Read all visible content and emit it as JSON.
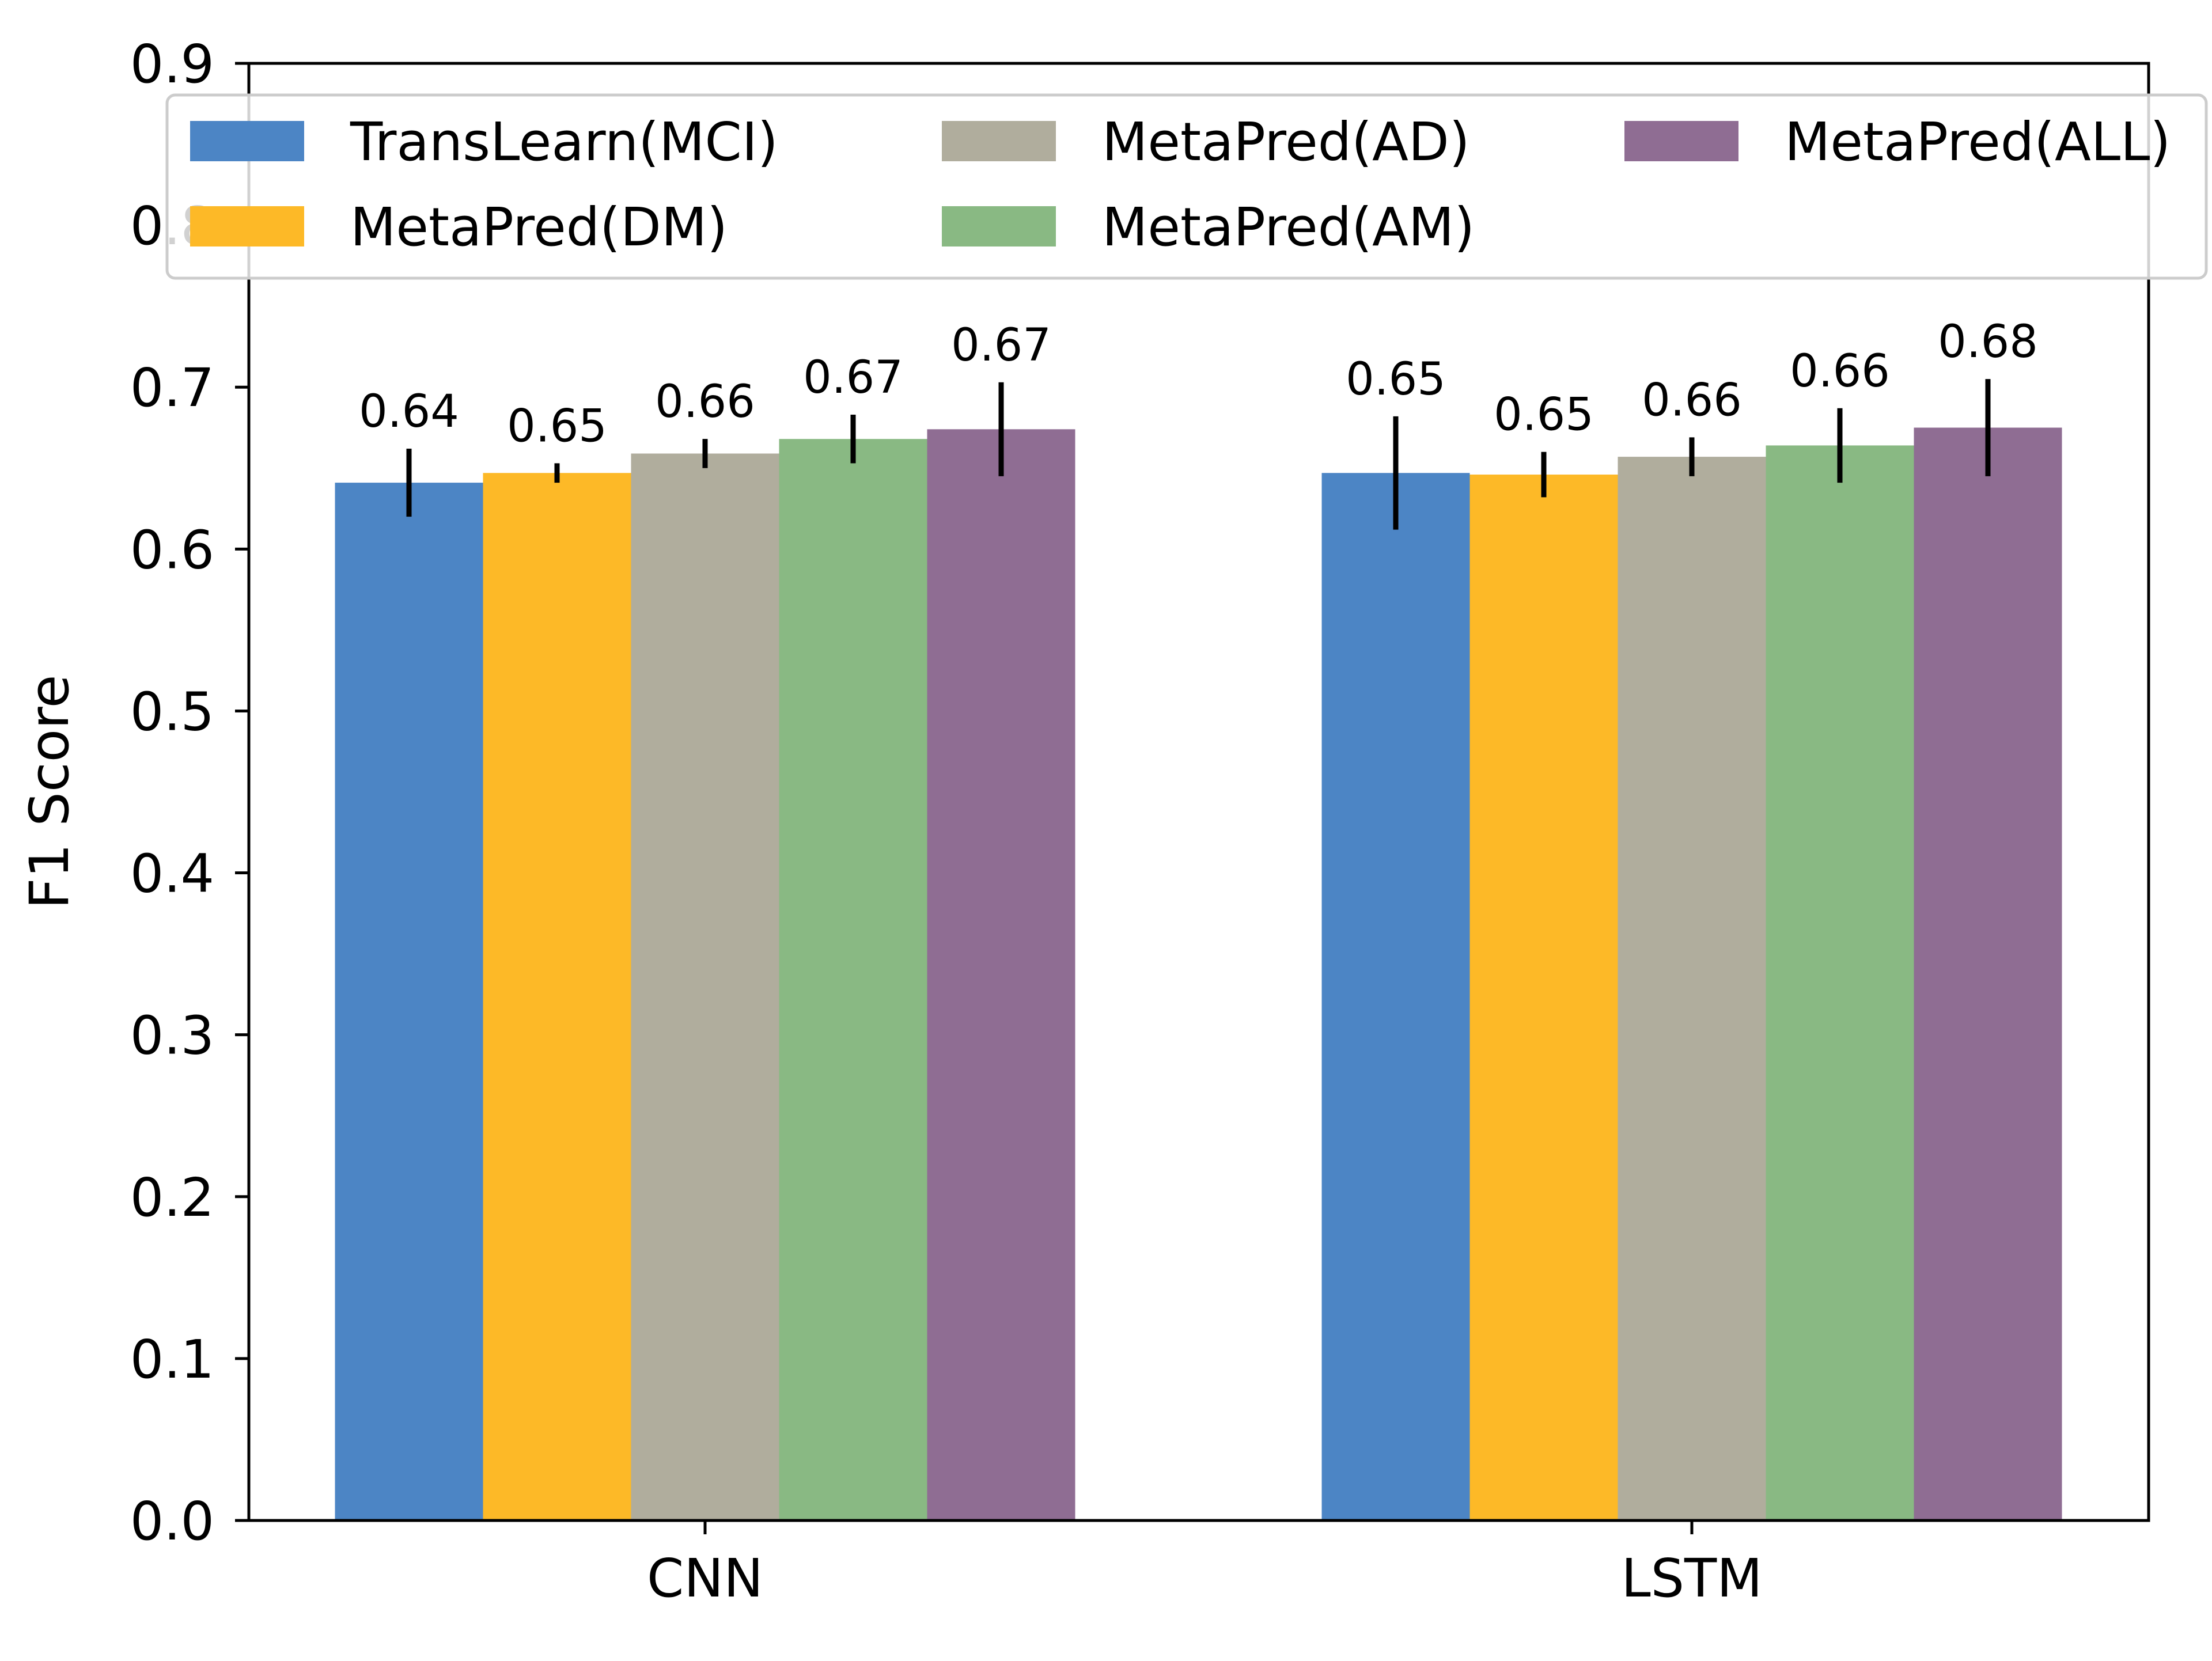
{
  "chart_data": {
    "type": "bar",
    "title": "",
    "xlabel": "",
    "ylabel": "F1 Score",
    "ylim": [
      0.0,
      0.9
    ],
    "yticks": [
      "0.0",
      "0.1",
      "0.2",
      "0.3",
      "0.4",
      "0.5",
      "0.6",
      "0.7",
      "0.8",
      "0.9"
    ],
    "grid": false,
    "legend_position": "top",
    "categories": [
      "CNN",
      "LSTM"
    ],
    "series": [
      {
        "name": "TransLearn(MCI)",
        "color": "#4c85c5",
        "values": [
          0.641,
          0.647
        ],
        "errors": [
          0.021,
          0.035
        ],
        "labels": [
          "0.64",
          "0.65"
        ]
      },
      {
        "name": "MetaPred(DM)",
        "color": "#fdb927",
        "values": [
          0.647,
          0.646
        ],
        "errors": [
          0.006,
          0.014
        ],
        "labels": [
          "0.65",
          "0.65"
        ]
      },
      {
        "name": "MetaPred(AD)",
        "color": "#b0ad9d",
        "values": [
          0.659,
          0.657
        ],
        "errors": [
          0.009,
          0.012
        ],
        "labels": [
          "0.66",
          "0.66"
        ]
      },
      {
        "name": "MetaPred(AM)",
        "color": "#89b983",
        "values": [
          0.668,
          0.664
        ],
        "errors": [
          0.015,
          0.023
        ],
        "labels": [
          "0.67",
          "0.66"
        ]
      },
      {
        "name": "MetaPred(ALL)",
        "color": "#8f6d93",
        "values": [
          0.674,
          0.675
        ],
        "errors": [
          0.029,
          0.03
        ],
        "labels": [
          "0.67",
          "0.68"
        ]
      }
    ]
  }
}
